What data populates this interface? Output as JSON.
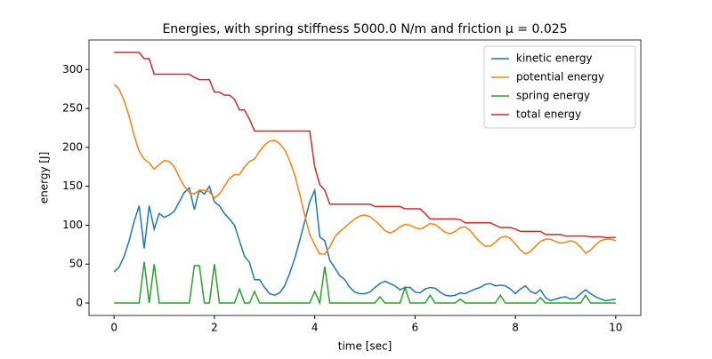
{
  "chart_data": {
    "type": "line",
    "title": "Energies, with spring stiffness 5000.0 N/m and friction μ = 0.025",
    "x_label": "time [sec]",
    "y_label": "energy [J]",
    "x": [
      0,
      0.1,
      0.2,
      0.3,
      0.4,
      0.5,
      0.6,
      0.7,
      0.8,
      0.9,
      1,
      1.1,
      1.2,
      1.3,
      1.4,
      1.5,
      1.6,
      1.7,
      1.8,
      1.9,
      2,
      2.1,
      2.2,
      2.3,
      2.4,
      2.5,
      2.6,
      2.7,
      2.8,
      2.9,
      3,
      3.1,
      3.2,
      3.3,
      3.4,
      3.5,
      3.6,
      3.7,
      3.8,
      3.9,
      4,
      4.1,
      4.2,
      4.3,
      4.4,
      4.5,
      4.6,
      4.7,
      4.8,
      4.9,
      5,
      5.1,
      5.2,
      5.3,
      5.4,
      5.5,
      5.6,
      5.7,
      5.8,
      5.9,
      6,
      6.1,
      6.2,
      6.3,
      6.4,
      6.5,
      6.6,
      6.7,
      6.8,
      6.9,
      7,
      7.1,
      7.2,
      7.3,
      7.4,
      7.5,
      7.6,
      7.7,
      7.8,
      7.9,
      8,
      8.1,
      8.2,
      8.3,
      8.4,
      8.5,
      8.6,
      8.7,
      8.8,
      8.9,
      9,
      9.1,
      9.2,
      9.3,
      9.4,
      9.5,
      9.6,
      9.7,
      9.8,
      9.9,
      10
    ],
    "series": [
      {
        "name": "kinetic energy",
        "color": "#1f77b4",
        "values": [
          40,
          46,
          60,
          80,
          105,
          125,
          70,
          125,
          95,
          115,
          110,
          113,
          118,
          130,
          142,
          148,
          120,
          145,
          140,
          150,
          130,
          125,
          115,
          108,
          100,
          80,
          60,
          52,
          30,
          30,
          20,
          12,
          10,
          13,
          22,
          38,
          57,
          80,
          105,
          130,
          145,
          85,
          80,
          55,
          45,
          35,
          30,
          20,
          14,
          12,
          12,
          14,
          20,
          25,
          28,
          25,
          22,
          17,
          20,
          20,
          14,
          13,
          18,
          20,
          19,
          14,
          10,
          9,
          10,
          13,
          12,
          15,
          18,
          20,
          24,
          25,
          22,
          23,
          22,
          18,
          12,
          18,
          22,
          15,
          12,
          17,
          7,
          3,
          5,
          7,
          8,
          5,
          6,
          12,
          17,
          12,
          8,
          5,
          3,
          4,
          5
        ]
      },
      {
        "name": "potential energy",
        "color": "#ff7f0e",
        "values": [
          281,
          275,
          260,
          240,
          215,
          195,
          185,
          180,
          172,
          178,
          183,
          182,
          175,
          162,
          150,
          142,
          140,
          145,
          145,
          143,
          135,
          140,
          150,
          160,
          165,
          165,
          175,
          182,
          185,
          195,
          203,
          208,
          209,
          205,
          197,
          183,
          165,
          140,
          113,
          88,
          75,
          63,
          63,
          72,
          85,
          92,
          97,
          103,
          108,
          112,
          113,
          111,
          106,
          100,
          93,
          90,
          93,
          98,
          101,
          100,
          97,
          95,
          98,
          102,
          101,
          96,
          91,
          89,
          92,
          97,
          98,
          93,
          85,
          78,
          73,
          73,
          78,
          84,
          86,
          83,
          76,
          68,
          63,
          66,
          73,
          79,
          82,
          82,
          79,
          77,
          78,
          80,
          78,
          72,
          64,
          68,
          75,
          80,
          82,
          82,
          80
        ]
      },
      {
        "name": "spring energy",
        "color": "#2ca02c",
        "values": [
          0,
          0,
          0,
          0,
          0,
          0,
          53,
          0,
          50,
          0,
          0,
          0,
          0,
          0,
          0,
          0,
          48,
          48,
          0,
          0,
          50,
          0,
          0,
          0,
          0,
          18,
          0,
          0,
          15,
          0,
          0,
          0,
          0,
          0,
          0,
          0,
          0,
          0,
          0,
          0,
          15,
          0,
          47,
          0,
          0,
          0,
          0,
          0,
          0,
          0,
          0,
          0,
          0,
          8,
          0,
          0,
          0,
          0,
          20,
          0,
          0,
          0,
          0,
          10,
          0,
          0,
          0,
          0,
          0,
          5,
          0,
          0,
          0,
          0,
          0,
          0,
          0,
          10,
          0,
          0,
          0,
          0,
          0,
          0,
          0,
          7,
          0,
          0,
          0,
          0,
          0,
          0,
          0,
          0,
          10,
          0,
          0,
          0,
          0,
          0,
          0
        ]
      },
      {
        "name": "total energy",
        "color": "#d62728",
        "values": [
          322,
          322,
          322,
          322,
          322,
          322,
          314,
          314,
          294,
          294,
          294,
          294,
          294,
          294,
          294,
          294,
          290,
          287,
          287,
          287,
          271,
          271,
          267,
          267,
          262,
          248,
          248,
          236,
          221,
          221,
          221,
          221,
          221,
          221,
          221,
          221,
          221,
          221,
          221,
          221,
          175,
          152,
          145,
          127,
          127,
          127,
          127,
          127,
          127,
          127,
          127,
          127,
          124,
          124,
          124,
          124,
          124,
          124,
          121,
          121,
          121,
          121,
          115,
          108,
          108,
          108,
          108,
          108,
          108,
          107,
          103,
          103,
          103,
          103,
          103,
          103,
          100,
          97,
          97,
          97,
          95,
          92,
          92,
          92,
          92,
          92,
          88,
          88,
          88,
          88,
          86,
          86,
          86,
          86,
          86,
          85,
          85,
          85,
          84,
          84,
          84
        ]
      }
    ],
    "xlim": [
      -0.5,
      10.5
    ],
    "ylim": [
      -16,
      338
    ],
    "xticks": [
      0,
      2,
      4,
      6,
      8,
      10
    ],
    "yticks": [
      0,
      50,
      100,
      150,
      200,
      250,
      300
    ],
    "legend": "upper right"
  }
}
